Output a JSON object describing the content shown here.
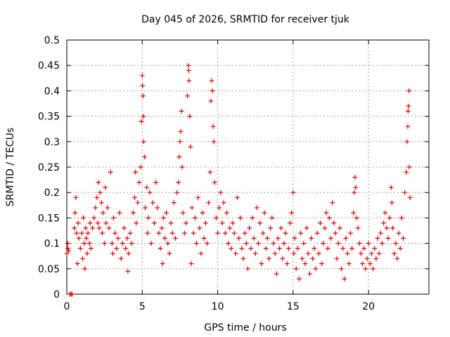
{
  "colors": {
    "marker": "#e00000",
    "grid": "#a0a0a0",
    "axis": "#000000"
  },
  "chart_data": {
    "type": "scatter",
    "title": "Day 045 of 2026, SRMTID for receiver tjuk",
    "xlabel": "GPS time / hours",
    "ylabel": "SRMTID / TECUs",
    "xlim": [
      0,
      24
    ],
    "ylim": [
      0,
      0.5
    ],
    "grid": true,
    "marker": "+",
    "x_tick_labels": [
      "0",
      "5",
      "10",
      "15",
      "20"
    ],
    "y_tick_labels": [
      "0",
      "0.05",
      "0.1",
      "0.15",
      "0.2",
      "0.25",
      "0.3",
      "0.35",
      "0.4",
      "0.45",
      "0.5"
    ],
    "x_tick_values": [
      0,
      5,
      10,
      15,
      20
    ],
    "y_tick_values": [
      0,
      0.05,
      0.1,
      0.15,
      0.2,
      0.25,
      0.3,
      0.35,
      0.4,
      0.45,
      0.5
    ],
    "series": [
      {
        "name": "SRMTID",
        "points": [
          [
            0.0,
            0.08
          ],
          [
            0.05,
            0.1
          ],
          [
            0.08,
            0.09
          ],
          [
            0.12,
            0.085
          ],
          [
            0.2,
            0.0
          ],
          [
            0.28,
            0.0
          ],
          [
            0.35,
            0.0
          ],
          [
            0.5,
            0.13
          ],
          [
            0.55,
            0.16
          ],
          [
            0.6,
            0.19
          ],
          [
            0.65,
            0.12
          ],
          [
            0.7,
            0.06
          ],
          [
            0.75,
            0.14
          ],
          [
            0.8,
            0.11
          ],
          [
            0.9,
            0.09
          ],
          [
            1.0,
            0.12
          ],
          [
            1.05,
            0.07
          ],
          [
            1.1,
            0.15
          ],
          [
            1.15,
            0.1
          ],
          [
            1.2,
            0.05
          ],
          [
            1.25,
            0.13
          ],
          [
            1.3,
            0.11
          ],
          [
            1.35,
            0.08
          ],
          [
            1.4,
            0.12
          ],
          [
            1.5,
            0.1
          ],
          [
            1.55,
            0.14
          ],
          [
            1.6,
            0.09
          ],
          [
            1.7,
            0.13
          ],
          [
            1.8,
            0.15
          ],
          [
            1.9,
            0.17
          ],
          [
            2.0,
            0.19
          ],
          [
            2.05,
            0.14
          ],
          [
            2.1,
            0.22
          ],
          [
            2.15,
            0.13
          ],
          [
            2.2,
            0.2
          ],
          [
            2.3,
            0.18
          ],
          [
            2.35,
            0.12
          ],
          [
            2.4,
            0.16
          ],
          [
            2.5,
            0.1
          ],
          [
            2.55,
            0.21
          ],
          [
            2.6,
            0.14
          ],
          [
            2.7,
            0.17
          ],
          [
            2.8,
            0.13
          ],
          [
            2.9,
            0.24
          ],
          [
            3.0,
            0.1
          ],
          [
            3.05,
            0.08
          ],
          [
            3.1,
            0.15
          ],
          [
            3.2,
            0.12
          ],
          [
            3.3,
            0.09
          ],
          [
            3.4,
            0.11
          ],
          [
            3.5,
            0.16
          ],
          [
            3.6,
            0.07
          ],
          [
            3.7,
            0.1
          ],
          [
            3.8,
            0.13
          ],
          [
            3.9,
            0.09
          ],
          [
            4.0,
            0.11
          ],
          [
            4.05,
            0.045
          ],
          [
            4.1,
            0.08
          ],
          [
            4.2,
            0.12
          ],
          [
            4.3,
            0.1
          ],
          [
            4.4,
            0.16
          ],
          [
            4.5,
            0.19
          ],
          [
            4.55,
            0.24
          ],
          [
            4.6,
            0.14
          ],
          [
            4.7,
            0.18
          ],
          [
            4.8,
            0.22
          ],
          [
            4.9,
            0.25
          ],
          [
            4.95,
            0.34
          ],
          [
            5.0,
            0.43
          ],
          [
            5.02,
            0.41
          ],
          [
            5.05,
            0.39
          ],
          [
            5.08,
            0.35
          ],
          [
            5.1,
            0.3
          ],
          [
            5.15,
            0.27
          ],
          [
            5.2,
            0.17
          ],
          [
            5.3,
            0.21
          ],
          [
            5.35,
            0.12
          ],
          [
            5.4,
            0.15
          ],
          [
            5.5,
            0.2
          ],
          [
            5.6,
            0.1
          ],
          [
            5.7,
            0.18
          ],
          [
            5.8,
            0.14
          ],
          [
            5.9,
            0.22
          ],
          [
            6.0,
            0.17
          ],
          [
            6.1,
            0.12
          ],
          [
            6.2,
            0.09
          ],
          [
            6.3,
            0.13
          ],
          [
            6.35,
            0.06
          ],
          [
            6.4,
            0.15
          ],
          [
            6.5,
            0.11
          ],
          [
            6.6,
            0.16
          ],
          [
            6.7,
            0.1
          ],
          [
            6.8,
            0.08
          ],
          [
            6.9,
            0.14
          ],
          [
            7.0,
            0.12
          ],
          [
            7.1,
            0.18
          ],
          [
            7.2,
            0.11
          ],
          [
            7.3,
            0.2
          ],
          [
            7.4,
            0.22
          ],
          [
            7.45,
            0.27
          ],
          [
            7.5,
            0.3
          ],
          [
            7.55,
            0.32
          ],
          [
            7.6,
            0.36
          ],
          [
            7.65,
            0.25
          ],
          [
            7.7,
            0.16
          ],
          [
            7.8,
            0.12
          ],
          [
            7.9,
            0.14
          ],
          [
            8.0,
            0.39
          ],
          [
            8.05,
            0.45
          ],
          [
            8.08,
            0.44
          ],
          [
            8.1,
            0.42
          ],
          [
            8.15,
            0.35
          ],
          [
            8.2,
            0.29
          ],
          [
            8.25,
            0.06
          ],
          [
            8.3,
            0.17
          ],
          [
            8.4,
            0.12
          ],
          [
            8.5,
            0.15
          ],
          [
            8.6,
            0.1
          ],
          [
            8.7,
            0.19
          ],
          [
            8.8,
            0.13
          ],
          [
            8.9,
            0.08
          ],
          [
            9.0,
            0.16
          ],
          [
            9.1,
            0.11
          ],
          [
            9.2,
            0.14
          ],
          [
            9.3,
            0.1
          ],
          [
            9.4,
            0.18
          ],
          [
            9.5,
            0.24
          ],
          [
            9.55,
            0.38
          ],
          [
            9.6,
            0.42
          ],
          [
            9.65,
            0.4
          ],
          [
            9.7,
            0.33
          ],
          [
            9.75,
            0.3
          ],
          [
            9.8,
            0.22
          ],
          [
            9.9,
            0.15
          ],
          [
            10.0,
            0.12
          ],
          [
            10.1,
            0.17
          ],
          [
            10.2,
            0.2
          ],
          [
            10.3,
            0.14
          ],
          [
            10.4,
            0.18
          ],
          [
            10.5,
            0.12
          ],
          [
            10.6,
            0.16
          ],
          [
            10.7,
            0.1
          ],
          [
            10.8,
            0.13
          ],
          [
            10.9,
            0.09
          ],
          [
            11.0,
            0.14
          ],
          [
            11.1,
            0.12
          ],
          [
            11.2,
            0.08
          ],
          [
            11.3,
            0.19
          ],
          [
            11.4,
            0.11
          ],
          [
            11.5,
            0.15
          ],
          [
            11.6,
            0.09
          ],
          [
            11.7,
            0.07
          ],
          [
            11.8,
            0.12
          ],
          [
            11.9,
            0.1
          ],
          [
            12.0,
            0.05
          ],
          [
            12.1,
            0.13
          ],
          [
            12.2,
            0.09
          ],
          [
            12.3,
            0.15
          ],
          [
            12.4,
            0.11
          ],
          [
            12.5,
            0.08
          ],
          [
            12.6,
            0.17
          ],
          [
            12.7,
            0.1
          ],
          [
            12.8,
            0.14
          ],
          [
            12.9,
            0.06
          ],
          [
            13.0,
            0.12
          ],
          [
            13.1,
            0.16
          ],
          [
            13.2,
            0.09
          ],
          [
            13.3,
            0.11
          ],
          [
            13.4,
            0.07
          ],
          [
            13.5,
            0.13
          ],
          [
            13.6,
            0.15
          ],
          [
            13.7,
            0.1
          ],
          [
            13.8,
            0.08
          ],
          [
            13.9,
            0.04
          ],
          [
            14.0,
            0.11
          ],
          [
            14.1,
            0.09
          ],
          [
            14.2,
            0.13
          ],
          [
            14.3,
            0.07
          ],
          [
            14.4,
            0.1
          ],
          [
            14.5,
            0.12
          ],
          [
            14.6,
            0.06
          ],
          [
            14.7,
            0.09
          ],
          [
            14.8,
            0.14
          ],
          [
            14.9,
            0.16
          ],
          [
            15.0,
            0.2
          ],
          [
            15.05,
            0.08
          ],
          [
            15.1,
            0.11
          ],
          [
            15.2,
            0.05
          ],
          [
            15.3,
            0.09
          ],
          [
            15.4,
            0.03
          ],
          [
            15.5,
            0.12
          ],
          [
            15.6,
            0.07
          ],
          [
            15.7,
            0.1
          ],
          [
            15.8,
            0.06
          ],
          [
            15.9,
            0.13
          ],
          [
            16.0,
            0.08
          ],
          [
            16.1,
            0.04
          ],
          [
            16.2,
            0.11
          ],
          [
            16.3,
            0.07
          ],
          [
            16.4,
            0.09
          ],
          [
            16.5,
            0.05
          ],
          [
            16.6,
            0.12
          ],
          [
            16.7,
            0.08
          ],
          [
            16.8,
            0.14
          ],
          [
            16.9,
            0.06
          ],
          [
            17.0,
            0.1
          ],
          [
            17.1,
            0.13
          ],
          [
            17.2,
            0.16
          ],
          [
            17.3,
            0.09
          ],
          [
            17.4,
            0.15
          ],
          [
            17.5,
            0.11
          ],
          [
            17.6,
            0.18
          ],
          [
            17.7,
            0.14
          ],
          [
            17.8,
            0.12
          ],
          [
            17.9,
            0.07
          ],
          [
            18.0,
            0.1
          ],
          [
            18.1,
            0.13
          ],
          [
            18.2,
            0.05
          ],
          [
            18.3,
            0.09
          ],
          [
            18.4,
            0.03
          ],
          [
            18.5,
            0.11
          ],
          [
            18.6,
            0.08
          ],
          [
            18.7,
            0.06
          ],
          [
            18.8,
            0.12
          ],
          [
            18.9,
            0.09
          ],
          [
            19.0,
            0.16
          ],
          [
            19.05,
            0.2
          ],
          [
            19.1,
            0.23
          ],
          [
            19.15,
            0.21
          ],
          [
            19.2,
            0.15
          ],
          [
            19.3,
            0.13
          ],
          [
            19.4,
            0.1
          ],
          [
            19.5,
            0.08
          ],
          [
            19.6,
            0.06
          ],
          [
            19.7,
            0.09
          ],
          [
            19.8,
            0.05
          ],
          [
            19.9,
            0.07
          ],
          [
            20.0,
            0.1
          ],
          [
            20.1,
            0.06
          ],
          [
            20.2,
            0.08
          ],
          [
            20.3,
            0.05
          ],
          [
            20.4,
            0.09
          ],
          [
            20.5,
            0.07
          ],
          [
            20.6,
            0.11
          ],
          [
            20.7,
            0.08
          ],
          [
            20.8,
            0.12
          ],
          [
            20.9,
            0.1
          ],
          [
            21.0,
            0.14
          ],
          [
            21.1,
            0.16
          ],
          [
            21.2,
            0.13
          ],
          [
            21.3,
            0.11
          ],
          [
            21.4,
            0.15
          ],
          [
            21.5,
            0.21
          ],
          [
            21.55,
            0.18
          ],
          [
            21.6,
            0.13
          ],
          [
            21.7,
            0.08
          ],
          [
            21.8,
            0.1
          ],
          [
            21.9,
            0.07
          ],
          [
            22.0,
            0.12
          ],
          [
            22.1,
            0.09
          ],
          [
            22.2,
            0.15
          ],
          [
            22.3,
            0.11
          ],
          [
            22.4,
            0.2
          ],
          [
            22.5,
            0.24
          ],
          [
            22.55,
            0.3
          ],
          [
            22.6,
            0.33
          ],
          [
            22.62,
            0.36
          ],
          [
            22.65,
            0.37
          ],
          [
            22.68,
            0.4
          ],
          [
            22.7,
            0.25
          ],
          [
            22.75,
            0.19
          ]
        ]
      }
    ]
  }
}
